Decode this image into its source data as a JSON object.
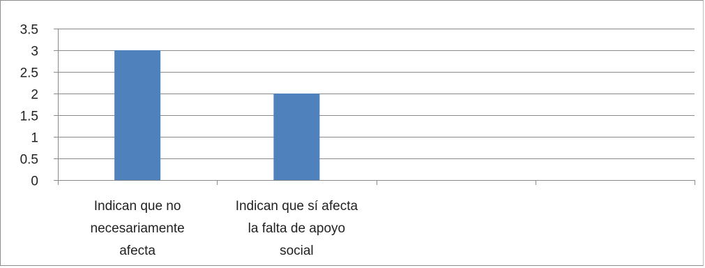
{
  "chart_data": {
    "type": "bar",
    "categories": [
      [
        "Indican que no",
        "necesariamente",
        "afecta"
      ],
      [
        "Indican que sí afecta",
        "la falta de apoyo",
        "social"
      ],
      [],
      []
    ],
    "series": [
      {
        "values": [
          3,
          2,
          null,
          null
        ],
        "color": "#4f81bd"
      }
    ],
    "title": "",
    "xlabel": "",
    "ylabel": "",
    "ylim": [
      0,
      3.5
    ],
    "yticks": [
      "0",
      "0.5",
      "1",
      "1.5",
      "2",
      "2.5",
      "3",
      "3.5"
    ],
    "grid": true,
    "legend": "none"
  }
}
